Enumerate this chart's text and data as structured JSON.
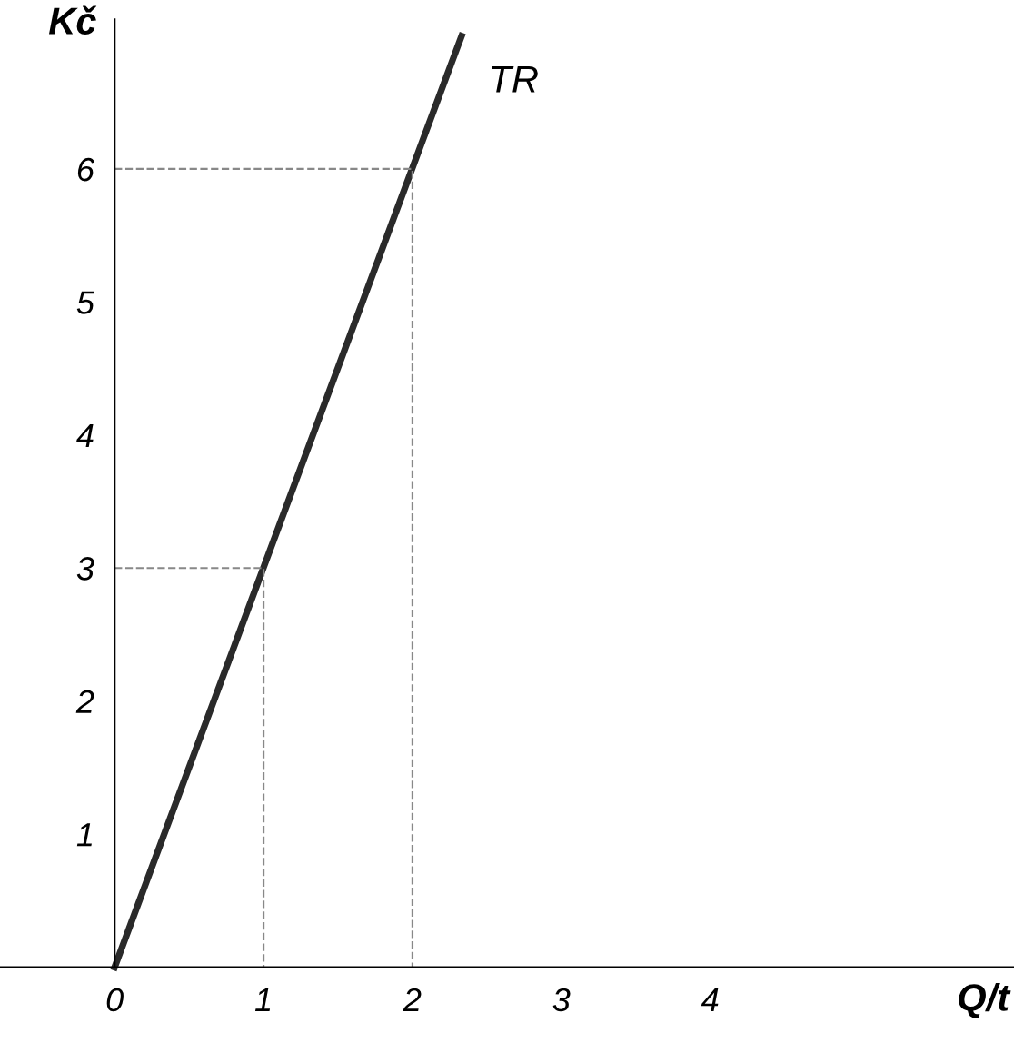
{
  "chart_data": {
    "type": "line",
    "xlabel": "Q/t",
    "ylabel": "Kč",
    "xlim": [
      -0.77,
      6.04
    ],
    "ylim": [
      -0.57,
      7.27
    ],
    "xticks": [
      0,
      1,
      2,
      3,
      4
    ],
    "yticks": [
      1,
      2,
      3,
      4,
      5,
      6
    ],
    "grid": false,
    "legend": false,
    "marker": "none",
    "series": [
      {
        "name": "TR",
        "color": "#2a2a2a",
        "x": [
          0,
          2.33
        ],
        "values": [
          0,
          7.0
        ],
        "line_style": "solid"
      },
      {
        "color": "#888888",
        "x": [
          0,
          1,
          1
        ],
        "values": [
          3,
          3,
          0
        ],
        "line_style": "dashed"
      },
      {
        "color": "#888888",
        "x": [
          0,
          2,
          2
        ],
        "values": [
          6,
          6,
          0
        ],
        "line_style": "dashed"
      }
    ]
  }
}
